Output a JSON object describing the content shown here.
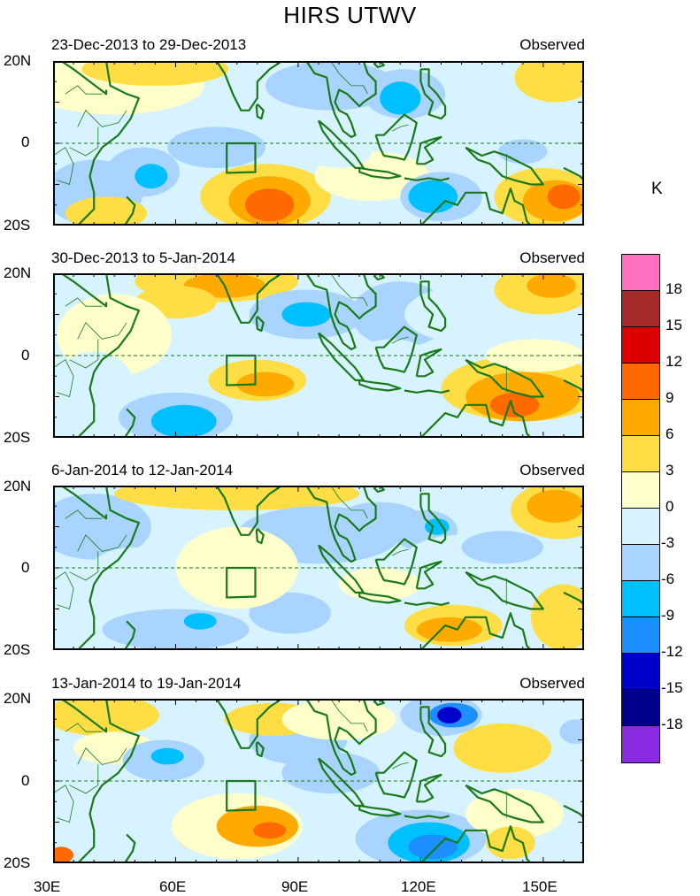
{
  "title": "HIRS UTWV",
  "unit": "K",
  "panels": [
    {
      "date": "23-Dec-2013 to 29-Dec-2013",
      "label": "Observed"
    },
    {
      "date": "30-Dec-2013 to 5-Jan-2014",
      "label": "Observed"
    },
    {
      "date": "6-Jan-2014 to 12-Jan-2014",
      "label": "Observed"
    },
    {
      "date": "13-Jan-2014 to 19-Jan-2014",
      "label": "Observed"
    }
  ],
  "yticks": [
    "20N",
    "0",
    "20S"
  ],
  "xticks": [
    "30E",
    "60E",
    "90E",
    "120E",
    "150E"
  ],
  "colorbar": {
    "labels": [
      "18",
      "15",
      "12",
      "9",
      "6",
      "3",
      "0",
      "-3",
      "-6",
      "-9",
      "-12",
      "-15",
      "-18"
    ],
    "colors": [
      "#ff6fc0",
      "#a52a2a",
      "#dd0000",
      "#ff6a00",
      "#ffaa00",
      "#ffdd44",
      "#ffffcc",
      "#d6f3ff",
      "#a8d4ff",
      "#00bfff",
      "#1e8fff",
      "#0000cd",
      "#00008b",
      "#8a2be2"
    ]
  }
}
